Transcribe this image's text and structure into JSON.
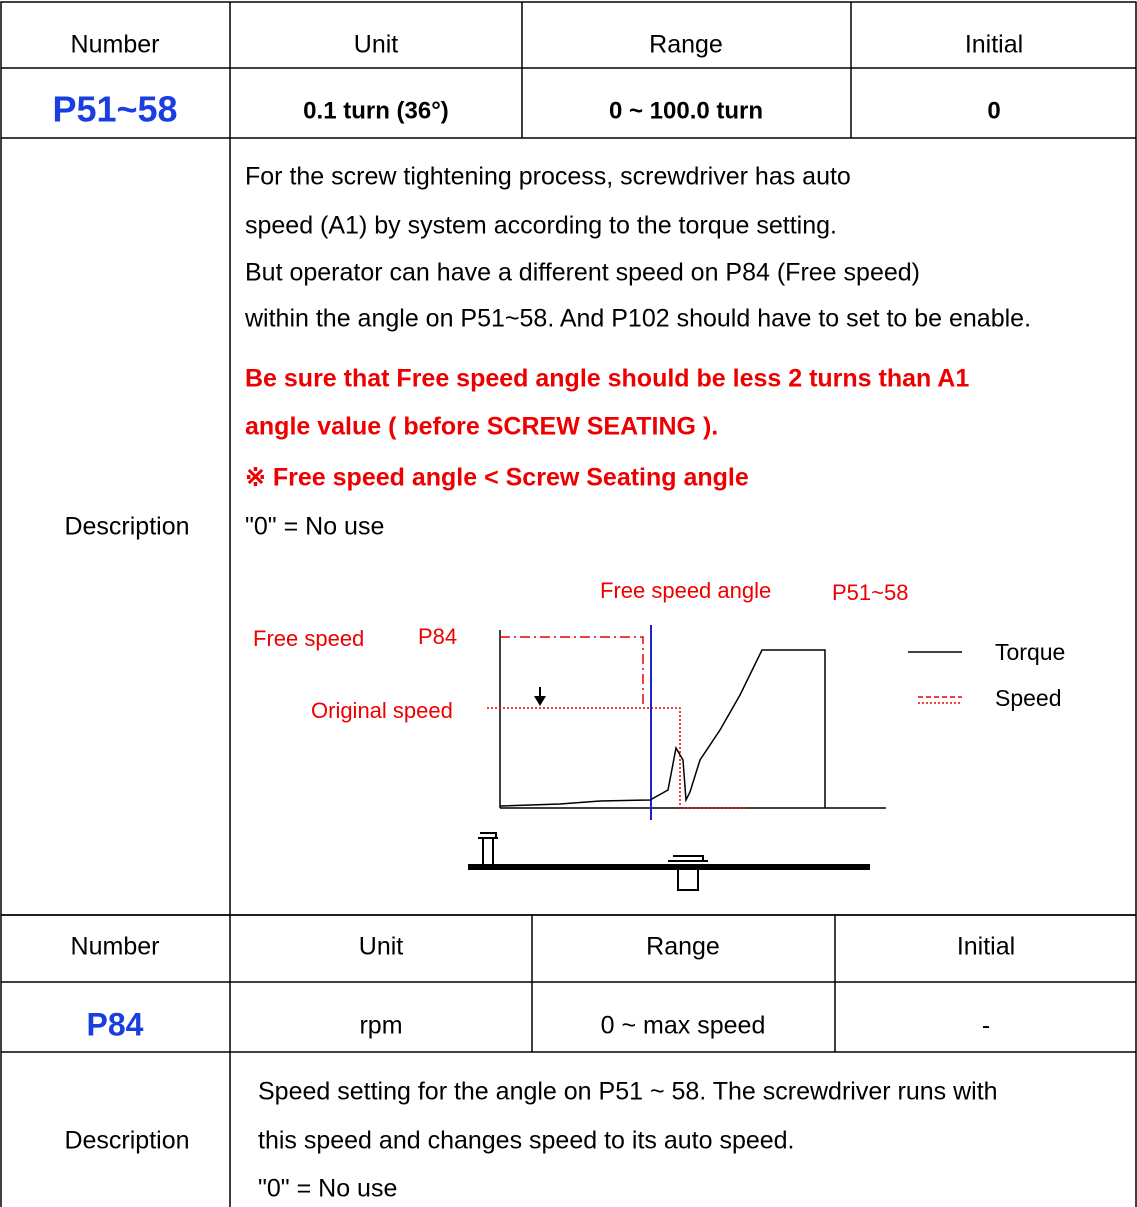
{
  "tables": [
    {
      "header": [
        "Number",
        "Unit",
        "Range",
        "Initial"
      ],
      "row": [
        "P51~58",
        "0.1 turn (36°)",
        "0 ~ 100.0 turn",
        "0"
      ],
      "description_label": "Description",
      "description": [
        "For the screw tightening process, screwdriver has auto",
        "speed (A1) by system according to the torque setting.",
        "But operator can have a different speed on P84 (Free speed)",
        "within the angle on P51~58. And P102 should have to set to be enable.",
        "Be sure that Free speed angle should be less 2 turns than A1",
        "angle value ( before SCREW SEATING ).",
        "※  Free speed angle < Screw Seating angle",
        "\"0\" = No use"
      ],
      "diagram": {
        "free_speed_angle": "Free speed angle",
        "angle_param": "P51~58",
        "free_speed": "Free speed",
        "speed_param": "P84",
        "original_speed": "Original speed",
        "legend": [
          "Torque",
          "Speed"
        ]
      }
    },
    {
      "header": [
        "Number",
        "Unit",
        "Range",
        "Initial"
      ],
      "row": [
        "P84",
        "rpm",
        "0 ~ max speed",
        "-"
      ],
      "description_label": "Description",
      "description": [
        "Speed setting for the angle on P51 ~ 58. The screwdriver runs with",
        "this speed and changes speed to its auto speed.",
        "\"0\" = No use"
      ]
    }
  ]
}
